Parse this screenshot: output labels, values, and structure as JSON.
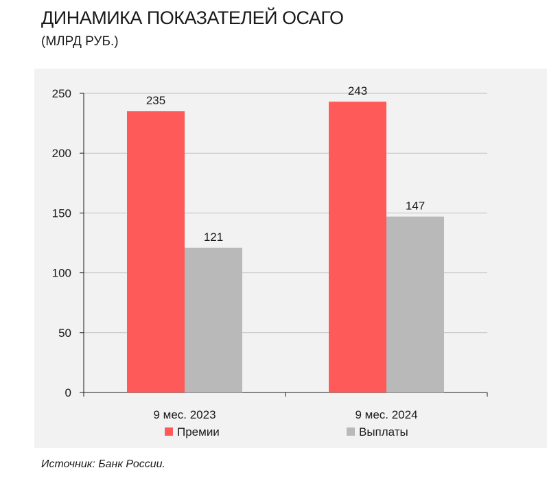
{
  "title": "ДИНАМИКА ПОКАЗАТЕЛЕЙ ОСАГО",
  "subtitle": "(МЛРД РУБ.)",
  "source": "Источник: Банк России.",
  "colors": {
    "premii": "#ff5a5a",
    "vyplaty": "#b9b9b9",
    "panel": "#f2f2f2"
  },
  "chart_data": {
    "type": "bar",
    "categories": [
      "9 мес. 2023",
      "9 мес. 2024"
    ],
    "series": [
      {
        "name": "Премии",
        "values": [
          235,
          243
        ],
        "color": "#ff5a5a"
      },
      {
        "name": "Выплаты",
        "values": [
          121,
          147
        ],
        "color": "#b9b9b9"
      }
    ],
    "ylim": [
      0,
      250
    ],
    "yticks": [
      0,
      50,
      100,
      150,
      200,
      250
    ],
    "grid": true,
    "legend": "bottom"
  }
}
